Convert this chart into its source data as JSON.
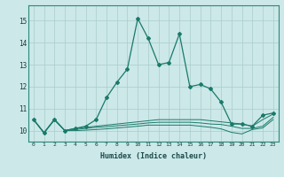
{
  "xlabel": "Humidex (Indice chaleur)",
  "ylabel": "",
  "xlim": [
    -0.5,
    23.5
  ],
  "ylim": [
    9.5,
    15.7
  ],
  "yticks": [
    10,
    11,
    12,
    13,
    14,
    15
  ],
  "xticks": [
    0,
    1,
    2,
    3,
    4,
    5,
    6,
    7,
    8,
    9,
    10,
    11,
    12,
    13,
    14,
    15,
    16,
    17,
    18,
    19,
    20,
    21,
    22,
    23
  ],
  "bg_color": "#cce8e8",
  "grid_color": "#aacccc",
  "line_color": "#1a7a6a",
  "lines": [
    [
      10.5,
      9.9,
      10.5,
      10.0,
      10.1,
      10.2,
      10.5,
      11.5,
      12.2,
      12.8,
      15.1,
      14.2,
      13.0,
      13.1,
      14.4,
      12.0,
      12.1,
      11.9,
      11.3,
      10.3,
      10.3,
      10.2,
      10.7,
      10.8
    ],
    [
      10.5,
      9.9,
      10.5,
      10.0,
      10.1,
      10.15,
      10.2,
      10.25,
      10.3,
      10.35,
      10.4,
      10.45,
      10.5,
      10.5,
      10.5,
      10.5,
      10.5,
      10.45,
      10.4,
      10.35,
      10.3,
      10.2,
      10.5,
      10.75
    ],
    [
      10.5,
      9.9,
      10.5,
      10.0,
      10.05,
      10.1,
      10.15,
      10.18,
      10.22,
      10.26,
      10.3,
      10.35,
      10.38,
      10.38,
      10.38,
      10.38,
      10.35,
      10.3,
      10.28,
      10.2,
      10.1,
      10.1,
      10.2,
      10.6
    ],
    [
      10.5,
      9.9,
      10.5,
      10.0,
      10.0,
      10.02,
      10.05,
      10.08,
      10.12,
      10.16,
      10.2,
      10.25,
      10.25,
      10.25,
      10.25,
      10.25,
      10.2,
      10.15,
      10.08,
      9.92,
      9.85,
      10.05,
      10.12,
      10.5
    ]
  ]
}
